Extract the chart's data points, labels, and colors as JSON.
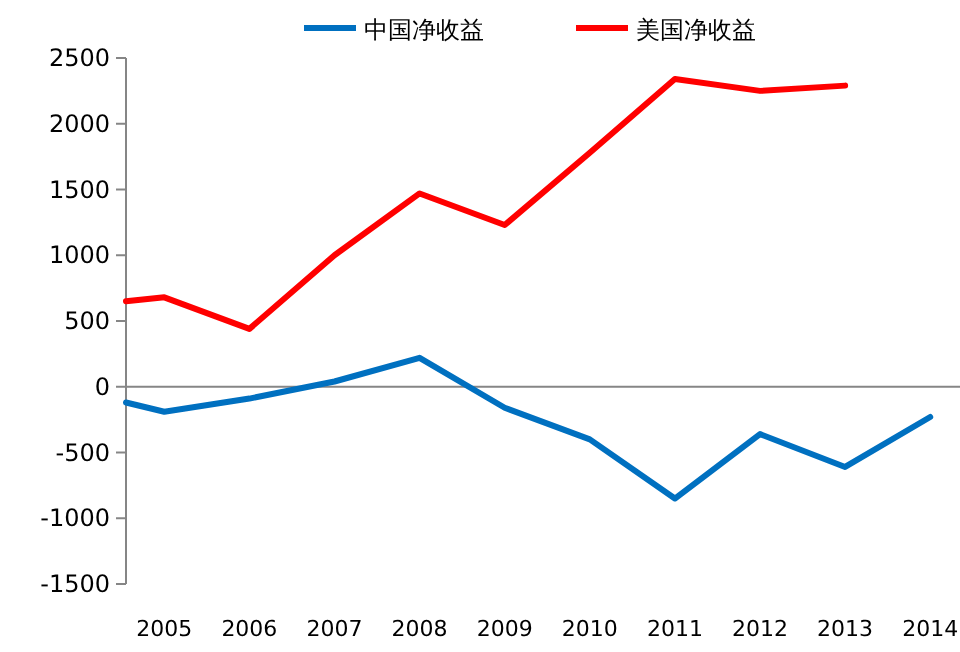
{
  "chart_data": {
    "type": "line",
    "legend": "top",
    "marker": "none",
    "line_style": "solid",
    "xlim": [
      2004.55,
      2014.35
    ],
    "xticks": [
      2005,
      2006,
      2007,
      2008,
      2009,
      2010,
      2011,
      2012,
      2013,
      2014
    ],
    "ylim": [
      -1500,
      2500
    ],
    "yticks": [
      -1500,
      -1000,
      -500,
      0,
      500,
      1000,
      1500,
      2000,
      2500
    ],
    "series": [
      {
        "name": "中国净收益",
        "color": "#0070c0",
        "x": [
          2004.55,
          2005,
          2006,
          2007,
          2008,
          2009,
          2010,
          2011,
          2012,
          2013,
          2014
        ],
        "values": [
          -120,
          -190,
          -90,
          40,
          220,
          -160,
          -400,
          -850,
          -360,
          -610,
          -230
        ]
      },
      {
        "name": "美国净收益",
        "color": "#ff0000",
        "x": [
          2004.55,
          2005,
          2006,
          2007,
          2008,
          2009,
          2010,
          2011,
          2012,
          2013
        ],
        "values": [
          650,
          680,
          440,
          1000,
          1470,
          1230,
          1780,
          2340,
          2250,
          2290
        ]
      }
    ]
  }
}
